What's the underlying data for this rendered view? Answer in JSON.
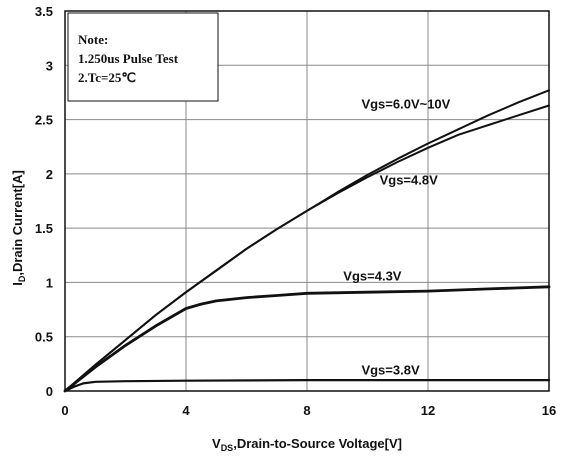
{
  "chart_data": {
    "type": "line",
    "xlabel": {
      "main": "V",
      "sub": "DS",
      "rest": ",Drain-to-Source Voltage[V]"
    },
    "ylabel": {
      "main": "I",
      "sub": "D",
      "rest": ",Drain Current[A]"
    },
    "xlim": [
      0,
      16
    ],
    "ylim": [
      0,
      3.5
    ],
    "xticks": [
      0,
      4,
      8,
      12,
      16
    ],
    "yticks": [
      0,
      0.5,
      1,
      1.5,
      2,
      2.5,
      3,
      3.5
    ],
    "grid": true,
    "note": {
      "line1": "Note:",
      "line2": "1.250us Pulse Test",
      "line3": "2.Tc=25℃"
    },
    "series": [
      {
        "name": "Vgs=6.0V~10V",
        "x": [
          0,
          1,
          2,
          3,
          4,
          5,
          6,
          7,
          8,
          9,
          10,
          11,
          12,
          13,
          14,
          15,
          16
        ],
        "y": [
          0,
          0.24,
          0.47,
          0.7,
          0.91,
          1.11,
          1.31,
          1.49,
          1.66,
          1.83,
          1.99,
          2.14,
          2.28,
          2.41,
          2.54,
          2.66,
          2.77
        ]
      },
      {
        "name": "Vgs=4.8V",
        "x": [
          0,
          1,
          2,
          3,
          4,
          5,
          6,
          7,
          8,
          9,
          10,
          11,
          12,
          13,
          14,
          15,
          16
        ],
        "y": [
          0,
          0.24,
          0.47,
          0.7,
          0.91,
          1.11,
          1.31,
          1.49,
          1.66,
          1.82,
          1.97,
          2.11,
          2.24,
          2.36,
          2.45,
          2.54,
          2.63
        ]
      },
      {
        "name": "Vgs=4.3V",
        "x": [
          0,
          1,
          2,
          3,
          4,
          4.5,
          5,
          6,
          7,
          8,
          10,
          12,
          14,
          16
        ],
        "y": [
          0,
          0.22,
          0.42,
          0.6,
          0.76,
          0.8,
          0.83,
          0.86,
          0.88,
          0.9,
          0.91,
          0.92,
          0.94,
          0.96
        ]
      },
      {
        "name": "Vgs=3.8V",
        "x": [
          0,
          0.3,
          0.6,
          1,
          2,
          4,
          8,
          12,
          16
        ],
        "y": [
          0,
          0.04,
          0.07,
          0.085,
          0.09,
          0.095,
          0.1,
          0.1,
          0.1
        ]
      }
    ]
  }
}
